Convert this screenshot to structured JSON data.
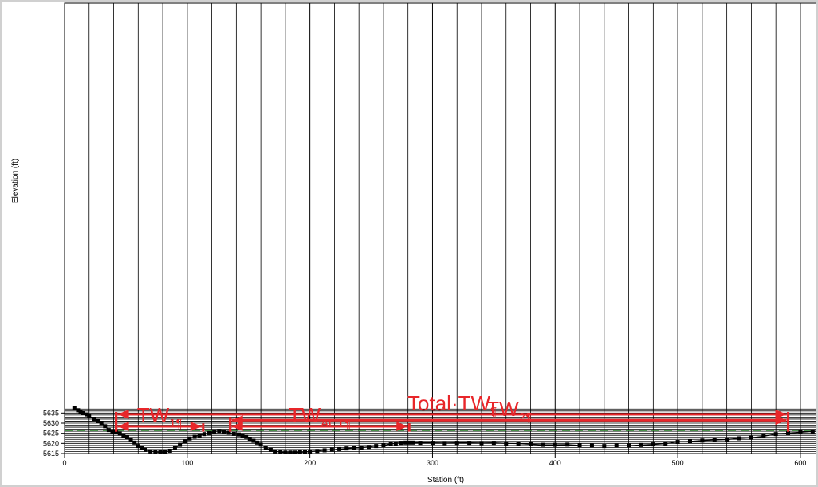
{
  "chart_data": {
    "type": "line",
    "title": "",
    "xlabel": "Station (ft)",
    "ylabel": "Elevation (ft)",
    "xlim": [
      0,
      615
    ],
    "ylim": [
      5615,
      5838
    ],
    "x_ticks": [
      0,
      100,
      200,
      300,
      400,
      500,
      600
    ],
    "y_ticks": [
      5615,
      5620,
      5625,
      5630,
      5635
    ],
    "grid": true,
    "water_surface_elevation": 5624.8,
    "ground_line_color": "#000000",
    "point_color": "#000000",
    "active_flow_fill_color": "#00e5f5",
    "ineffective_hatch_color": "#2e8b2e",
    "water_line_color": "#1f3fbf",
    "dashed_line_color": "#3a9a3a",
    "annotation_color": "#e8262a",
    "ground_profile": {
      "x": [
        8,
        11,
        13,
        15,
        18,
        20,
        24,
        27,
        30,
        33,
        36,
        39,
        42,
        45,
        48,
        51,
        54,
        57,
        60,
        63,
        66,
        70,
        74,
        78,
        82,
        86,
        90,
        94,
        98,
        102,
        106,
        110,
        114,
        118,
        122,
        126,
        130,
        134,
        138,
        142,
        145,
        148,
        151,
        154,
        157,
        160,
        164,
        168,
        172,
        176,
        180,
        184,
        188,
        192,
        196,
        200,
        206,
        212,
        218,
        224,
        230,
        236,
        242,
        248,
        254,
        260,
        266,
        270,
        274,
        278,
        281,
        284,
        290,
        300,
        310,
        320,
        330,
        340,
        350,
        360,
        370,
        380,
        390,
        400,
        410,
        420,
        430,
        440,
        450,
        460,
        470,
        480,
        490,
        500,
        510,
        520,
        530,
        540,
        550,
        560,
        570,
        580,
        590,
        600,
        610,
        616
      ],
      "y": [
        5637.3,
        5636.4,
        5635.7,
        5635.0,
        5634.3,
        5633.4,
        5632.0,
        5631.0,
        5630.2,
        5628.5,
        5626.6,
        5626.0,
        5625.5,
        5624.8,
        5623.9,
        5622.9,
        5621.8,
        5620.4,
        5618.7,
        5617.6,
        5616.8,
        5616.2,
        5615.8,
        5615.6,
        5615.8,
        5616.4,
        5617.6,
        5619.3,
        5620.9,
        5622.4,
        5623.3,
        5624.0,
        5624.6,
        5625.1,
        5625.8,
        5626.2,
        5625.9,
        5625.3,
        5624.7,
        5624.4,
        5623.9,
        5623.2,
        5622.3,
        5621.3,
        5620.4,
        5619.4,
        5617.9,
        5616.8,
        5616.2,
        5615.7,
        5615.5,
        5615.5,
        5615.5,
        5615.6,
        5615.8,
        5616.0,
        5616.3,
        5616.6,
        5616.9,
        5617.2,
        5617.5,
        5617.7,
        5617.9,
        5618.3,
        5618.7,
        5619.1,
        5619.7,
        5620.1,
        5620.3,
        5620.4,
        5620.4,
        5620.4,
        5620.3,
        5620.3,
        5620.2,
        5620.3,
        5620.3,
        5620.2,
        5620.3,
        5620.0,
        5619.9,
        5619.6,
        5619.3,
        5619.3,
        5619.4,
        5619.0,
        5618.9,
        5618.7,
        5618.9,
        5618.9,
        5619.2,
        5619.5,
        5619.9,
        5620.7,
        5621.0,
        5621.4,
        5621.7,
        5621.9,
        5622.5,
        5622.8,
        5623.5,
        5624.6,
        5625.1,
        5625.5,
        5625.9,
        5626.1
      ]
    },
    "annotations": [
      {
        "label": "Total·TW",
        "subscript": "¶",
        "from": 42,
        "to": 590,
        "elev": 5634.4,
        "left_tick_top": 5635.5,
        "right_tick_top": 5635.5
      },
      {
        "label": "TW",
        "subscript": "2¶",
        "from": 135,
        "to": 590,
        "elev": 5631.5,
        "left_tick_top": 5633.0,
        "right_tick_top": 5635.5
      },
      {
        "label": "TW",
        "subscript": "1¶",
        "from": 42,
        "to": 113,
        "elev": 5628.4,
        "left_tick_top": 5635.5,
        "right_tick_top": 5629.9
      },
      {
        "label": "TW",
        "subscript": "ACT¶",
        "from": 135,
        "to": 281,
        "elev": 5628.4,
        "left_tick_top": 5633.0,
        "right_tick_top": 5629.9
      }
    ]
  }
}
